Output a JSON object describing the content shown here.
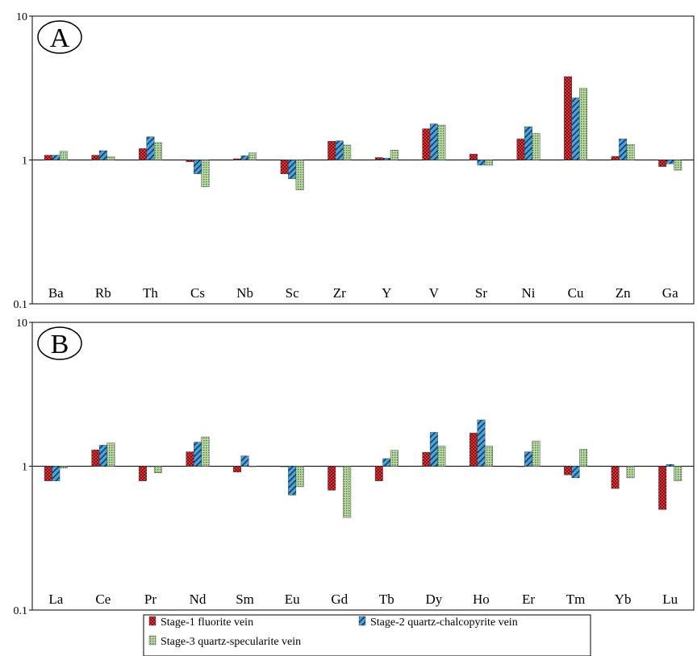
{
  "chart_data": [
    {
      "type": "bar",
      "panel_label": "A",
      "scale": "log",
      "baseline": 1,
      "ylim": [
        0.1,
        10
      ],
      "yticks": [
        "10",
        "1",
        "0.1"
      ],
      "categories": [
        "Ba",
        "Rb",
        "Th",
        "Cs",
        "Nb",
        "Sc",
        "Zr",
        "Y",
        "V",
        "Sr",
        "Ni",
        "Cu",
        "Zn",
        "Ga"
      ],
      "series": [
        {
          "name": "Stage-1 fluorite vein",
          "values": [
            1.08,
            1.08,
            1.2,
            0.97,
            1.02,
            0.8,
            1.35,
            1.04,
            1.65,
            1.1,
            1.4,
            3.8,
            1.06,
            0.9
          ]
        },
        {
          "name": "Stage-2 quartz-chalcopyrite vein",
          "values": [
            1.08,
            1.16,
            1.45,
            0.8,
            1.07,
            0.74,
            1.36,
            1.03,
            1.78,
            0.92,
            1.7,
            2.7,
            1.4,
            0.94
          ]
        },
        {
          "name": "Stage-3 quartz-specularite vein",
          "values": [
            1.15,
            1.05,
            1.32,
            0.65,
            1.12,
            0.62,
            1.27,
            1.17,
            1.75,
            0.92,
            1.53,
            3.15,
            1.28,
            0.85
          ]
        }
      ]
    },
    {
      "type": "bar",
      "panel_label": "B",
      "scale": "log",
      "baseline": 1,
      "ylim": [
        0.1,
        10
      ],
      "yticks": [
        "10",
        "1",
        "0.1"
      ],
      "categories": [
        "La",
        "Ce",
        "Pr",
        "Nd",
        "Sm",
        "Eu",
        "Gd",
        "Tb",
        "Dy",
        "Ho",
        "Er",
        "Tm",
        "Yb",
        "Lu"
      ],
      "series": [
        {
          "name": "Stage-1 fluorite vein",
          "values": [
            0.79,
            1.3,
            0.79,
            1.26,
            0.91,
            0.99,
            0.68,
            0.79,
            1.25,
            1.7,
            1.0,
            0.87,
            0.7,
            0.5
          ]
        },
        {
          "name": "Stage-2 quartz-chalcopyrite vein",
          "values": [
            0.79,
            1.4,
            1.0,
            1.47,
            1.18,
            0.63,
            1.0,
            1.13,
            1.72,
            2.1,
            1.26,
            0.83,
            1.0,
            1.03
          ]
        },
        {
          "name": "Stage-3 quartz-specularite vein",
          "values": [
            0.97,
            1.45,
            0.9,
            1.6,
            1.0,
            0.72,
            0.44,
            1.29,
            1.38,
            1.38,
            1.5,
            1.31,
            0.83,
            0.79
          ]
        }
      ]
    }
  ],
  "legend": {
    "items": [
      {
        "label": "Stage-1 fluorite vein",
        "color": "#c0282a",
        "pattern": "checker"
      },
      {
        "label": "Stage-2 quartz-chalcopyrite vein",
        "color": "#3a92cf",
        "pattern": "diagonal"
      },
      {
        "label": "Stage-3 quartz-specularite vein",
        "color": "#8fbd78",
        "pattern": "dots"
      }
    ]
  }
}
